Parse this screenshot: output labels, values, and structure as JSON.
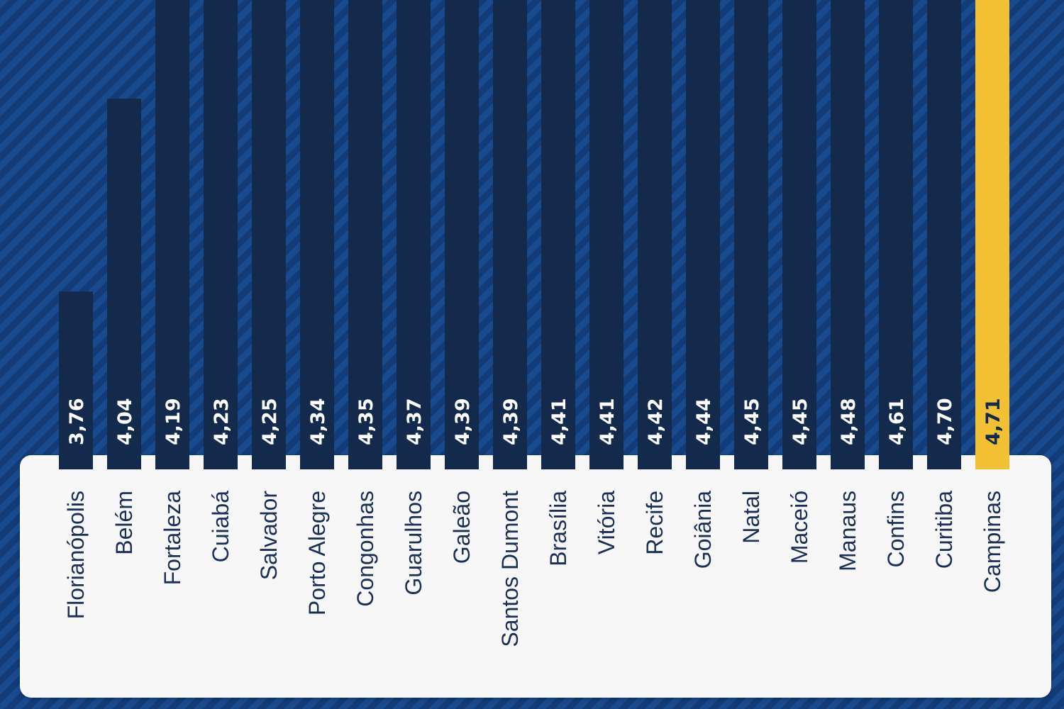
{
  "chart_data": {
    "type": "bar",
    "categories": [
      "Florianópolis",
      "Belém",
      "Fortaleza",
      "Cuiabá",
      "Salvador",
      "Porto Alegre",
      "Congonhas",
      "Guarulhos",
      "Galeão",
      "Santos Dumont",
      "Brasília",
      "Vitória",
      "Recife",
      "Goiânia",
      "Natal",
      "Maceió",
      "Manaus",
      "Confins",
      "Curitiba",
      "Campinas"
    ],
    "values": [
      3.76,
      4.04,
      4.19,
      4.23,
      4.25,
      4.34,
      4.35,
      4.37,
      4.39,
      4.39,
      4.41,
      4.41,
      4.42,
      4.44,
      4.45,
      4.45,
      4.48,
      4.61,
      4.7,
      4.71
    ],
    "value_labels": [
      "3,76",
      "4,04",
      "4,19",
      "4,23",
      "4,25",
      "4,34",
      "4,35",
      "4,37",
      "4,39",
      "4,39",
      "4,41",
      "4,41",
      "4,42",
      "4,44",
      "4,45",
      "4,45",
      "4,48",
      "4,61",
      "4,70",
      "4,71"
    ],
    "highlight": "Campinas",
    "colors": {
      "bar": "#142a4c",
      "highlight_bar": "#f2c133",
      "value_text": "#ffffff",
      "highlight_value_text": "#142a4c",
      "category_text": "#1c2f55",
      "panel": "#f7f7f8"
    },
    "title": "",
    "xlabel": "",
    "ylabel": ""
  }
}
